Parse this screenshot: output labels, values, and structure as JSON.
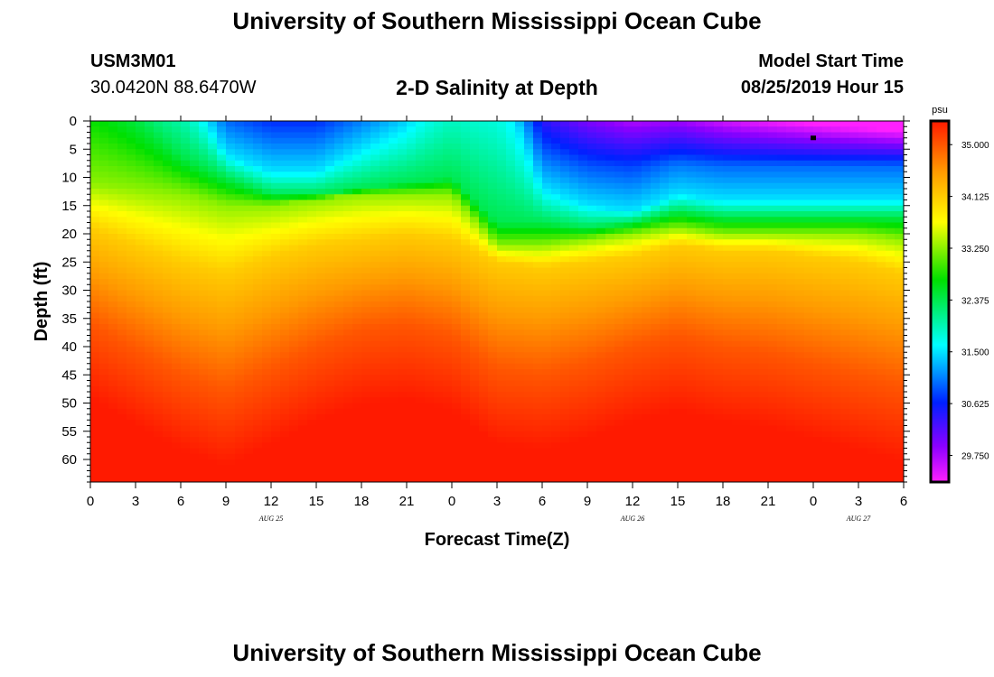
{
  "header": {
    "title": "University of Southern Mississippi Ocean Cube",
    "station_id": "USM3M01",
    "coordinates": "30.0420N 88.6470W",
    "subtitle": "2-D Salinity at Depth",
    "model_start_label": "Model Start Time",
    "model_start_value": "08/25/2019 Hour 15"
  },
  "footer": {
    "title": "University of Southern Mississippi Ocean Cube"
  },
  "chart_data": {
    "type": "heatmap",
    "title": "2-D Salinity at Depth",
    "xlabel": "Forecast Time(Z)",
    "ylabel": "Depth (ft)",
    "x_tick_labels": [
      "0",
      "3",
      "6",
      "9",
      "12",
      "15",
      "18",
      "21",
      "0",
      "3",
      "6",
      "9",
      "12",
      "15",
      "18",
      "21",
      "0",
      "3",
      "6"
    ],
    "x_range_hours": [
      0,
      54
    ],
    "y_tick_labels": [
      "0",
      "5",
      "10",
      "15",
      "20",
      "25",
      "30",
      "35",
      "40",
      "45",
      "50",
      "55",
      "60"
    ],
    "y_range": [
      0,
      64
    ],
    "date_labels": [
      {
        "text": "AUG 25",
        "hour": 12
      },
      {
        "text": "AUG 26",
        "hour": 36
      },
      {
        "text": "AUG 27",
        "hour": 51
      }
    ],
    "colorbar": {
      "unit": "psu",
      "min": 29.3,
      "max": 35.4,
      "tick_labels": [
        "35.000",
        "34.125",
        "33.250",
        "32.375",
        "31.500",
        "30.625",
        "29.750"
      ],
      "tick_values": [
        35.0,
        34.125,
        33.25,
        32.375,
        31.5,
        30.625,
        29.75
      ]
    },
    "station_marker": {
      "hour": 48,
      "depth": 3
    },
    "isolines_psu": {
      "levels": [
        31.5,
        32.375,
        33.25,
        34.125,
        35.0
      ],
      "hours": [
        0,
        6,
        9,
        12,
        15,
        18,
        21,
        24,
        27,
        30,
        33,
        36,
        39,
        42,
        45,
        48,
        51,
        54
      ],
      "depths_ft": [
        [
          -8,
          -8,
          6,
          9,
          9,
          5,
          1,
          -8,
          -8,
          12,
          15,
          16,
          13,
          14,
          14,
          14,
          14,
          14
        ],
        [
          -8,
          6,
          10,
          13,
          13,
          12,
          11,
          10,
          18,
          18,
          19,
          18,
          16,
          17,
          17,
          17,
          17,
          17
        ],
        [
          11,
          13,
          15,
          15,
          14,
          13,
          13,
          13,
          22,
          22,
          21,
          20,
          19,
          20,
          20,
          20,
          20,
          21
        ],
        [
          19,
          25,
          27,
          24,
          22,
          21,
          20,
          21,
          25,
          26,
          25,
          24,
          22,
          23,
          23,
          24,
          25,
          27
        ],
        [
          36,
          45,
          48,
          44,
          40,
          37,
          36,
          38,
          44,
          45,
          43,
          40,
          38,
          40,
          41,
          43,
          45,
          47
        ]
      ]
    }
  }
}
